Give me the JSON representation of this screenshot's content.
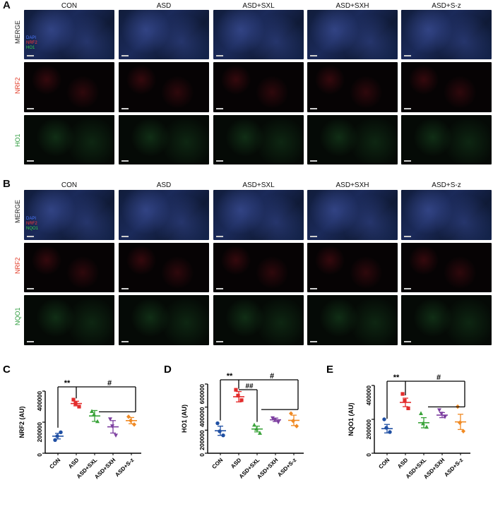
{
  "panelA": {
    "letter": "A",
    "columns": [
      "CON",
      "ASD",
      "ASD+SXL",
      "ASD+SXH",
      "ASD+S-z"
    ],
    "rows": [
      "MERGE",
      "NRF2",
      "HO1"
    ],
    "overlay_legend": [
      "DAPI",
      "NRF2",
      "HO1"
    ]
  },
  "panelB": {
    "letter": "B",
    "columns": [
      "CON",
      "ASD",
      "ASD+SXL",
      "ASD+SXH",
      "ASD+S-z"
    ],
    "rows": [
      "MERGE",
      "NRF2",
      "NQO1"
    ],
    "overlay_legend": [
      "DAPI",
      "NRF2",
      "NQO1"
    ]
  },
  "colors": {
    "CON": "#1f4fa3",
    "ASD": "#e32b2b",
    "ASD+SXL": "#3aa33a",
    "ASD+SXH": "#7d3fa0",
    "ASD+S-z": "#f08a24"
  },
  "chart_data": [
    {
      "letter": "C",
      "type": "scatter",
      "ylabel": "NRF2 (AU)",
      "ylim": [
        0,
        400000
      ],
      "yticks": [
        0,
        200000,
        400000
      ],
      "categories": [
        "CON",
        "ASD",
        "ASD+SXL",
        "ASD+SXH",
        "ASD+S-z"
      ],
      "points": [
        [
          85000,
          135000,
          110000
        ],
        [
          345000,
          300000,
          320000
        ],
        [
          270000,
          205000,
          250000
        ],
        [
          220000,
          115000,
          175000
        ],
        [
          235000,
          185000,
          210000
        ]
      ],
      "means": [
        110000,
        320000,
        240000,
        170000,
        210000
      ],
      "sems": [
        18000,
        15000,
        35000,
        40000,
        20000
      ],
      "annotations": [
        "**",
        "#"
      ]
    },
    {
      "letter": "D",
      "type": "scatter",
      "ylabel": "HO1 (AU)",
      "ylim": [
        0,
        600000
      ],
      "yticks": [
        0,
        200000,
        400000,
        600000
      ],
      "categories": [
        "CON",
        "ASD",
        "ASD+SXL",
        "ASD+SXH",
        "ASD+S-z"
      ],
      "points": [
        [
          260000,
          155000,
          190000
        ],
        [
          550000,
          460000,
          500000
        ],
        [
          245000,
          175000,
          210000
        ],
        [
          305000,
          270000,
          290000
        ],
        [
          345000,
          235000,
          280000
        ]
      ],
      "means": [
        195000,
        490000,
        210000,
        290000,
        285000
      ],
      "sems": [
        40000,
        45000,
        25000,
        15000,
        45000
      ],
      "annotations": [
        "**",
        "##",
        "#"
      ]
    },
    {
      "letter": "E",
      "type": "scatter",
      "ylabel": "NQO1 (AU)",
      "ylim": [
        0,
        400000
      ],
      "yticks": [
        0,
        200000,
        400000
      ],
      "categories": [
        "CON",
        "ASD",
        "ASD+SXL",
        "ASD+SXH",
        "ASD+S-z"
      ],
      "points": [
        [
          200000,
          125000,
          150000
        ],
        [
          350000,
          265000,
          310000
        ],
        [
          235000,
          155000,
          175000
        ],
        [
          255000,
          215000,
          235000
        ],
        [
          275000,
          130000,
          180000
        ]
      ],
      "means": [
        145000,
        300000,
        180000,
        225000,
        185000
      ],
      "sems": [
        25000,
        25000,
        30000,
        15000,
        45000
      ],
      "annotations": [
        "**",
        "#"
      ]
    }
  ]
}
